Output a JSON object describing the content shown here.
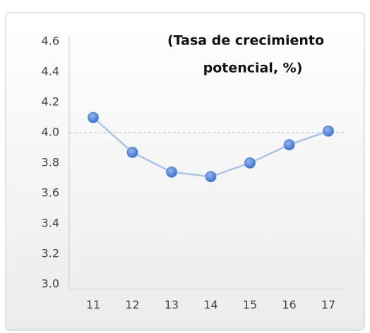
{
  "chart_data": {
    "type": "line",
    "title": [
      "(Tasa de crecimiento",
      "potencial, %)"
    ],
    "categories": [
      "11",
      "12",
      "13",
      "14",
      "15",
      "16",
      "17"
    ],
    "series": [
      {
        "color": "#4a7fd6",
        "line_color": "#a9c4ea",
        "values": [
          4.1,
          3.87,
          3.74,
          3.71,
          3.8,
          3.92,
          4.01
        ]
      }
    ],
    "ylim": [
      3,
      4.6
    ],
    "yticks": [
      {
        "value": 3,
        "label": "3.0"
      },
      3.2,
      3.4,
      3.6,
      3.8,
      {
        "value": 4,
        "label": "4.0"
      },
      4.2,
      4.4,
      4.6
    ],
    "reference_line": 4,
    "grid": false
  }
}
